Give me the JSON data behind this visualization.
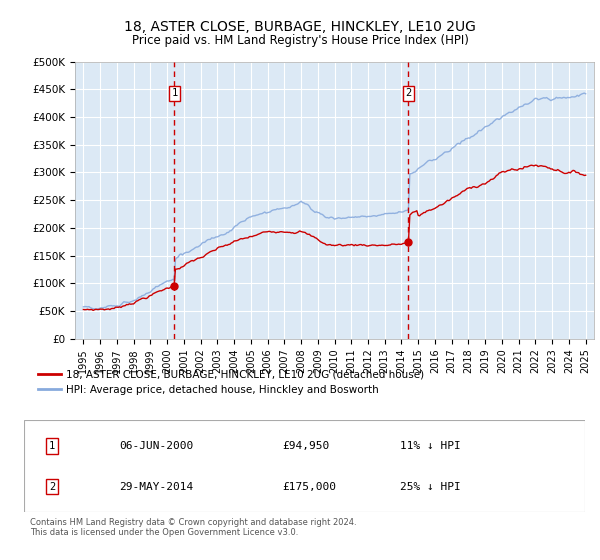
{
  "title": "18, ASTER CLOSE, BURBAGE, HINCKLEY, LE10 2UG",
  "subtitle": "Price paid vs. HM Land Registry's House Price Index (HPI)",
  "ylabel_ticks": [
    "£0",
    "£50K",
    "£100K",
    "£150K",
    "£200K",
    "£250K",
    "£300K",
    "£350K",
    "£400K",
    "£450K",
    "£500K"
  ],
  "ytick_values": [
    0,
    50000,
    100000,
    150000,
    200000,
    250000,
    300000,
    350000,
    400000,
    450000,
    500000
  ],
  "xlim": [
    1994.5,
    2025.5
  ],
  "ylim": [
    0,
    500000
  ],
  "background_color": "#dce9f5",
  "grid_color": "#ffffff",
  "red_line_color": "#cc0000",
  "blue_line_color": "#88aadd",
  "marker1_x": 2000.44,
  "marker1_y": 94950,
  "marker2_x": 2014.41,
  "marker2_y": 175000,
  "vline_color": "#cc0000",
  "annotation1_date": "06-JUN-2000",
  "annotation1_price": "£94,950",
  "annotation1_hpi": "11% ↓ HPI",
  "annotation2_date": "29-MAY-2014",
  "annotation2_price": "£175,000",
  "annotation2_hpi": "25% ↓ HPI",
  "legend_line1": "18, ASTER CLOSE, BURBAGE, HINCKLEY, LE10 2UG (detached house)",
  "legend_line2": "HPI: Average price, detached house, Hinckley and Bosworth",
  "footer": "Contains HM Land Registry data © Crown copyright and database right 2024.\nThis data is licensed under the Open Government Licence v3.0.",
  "xtick_years": [
    1995,
    1996,
    1997,
    1998,
    1999,
    2000,
    2001,
    2002,
    2003,
    2004,
    2005,
    2006,
    2007,
    2008,
    2009,
    2010,
    2011,
    2012,
    2013,
    2014,
    2015,
    2016,
    2017,
    2018,
    2019,
    2020,
    2021,
    2022,
    2023,
    2024,
    2025
  ]
}
